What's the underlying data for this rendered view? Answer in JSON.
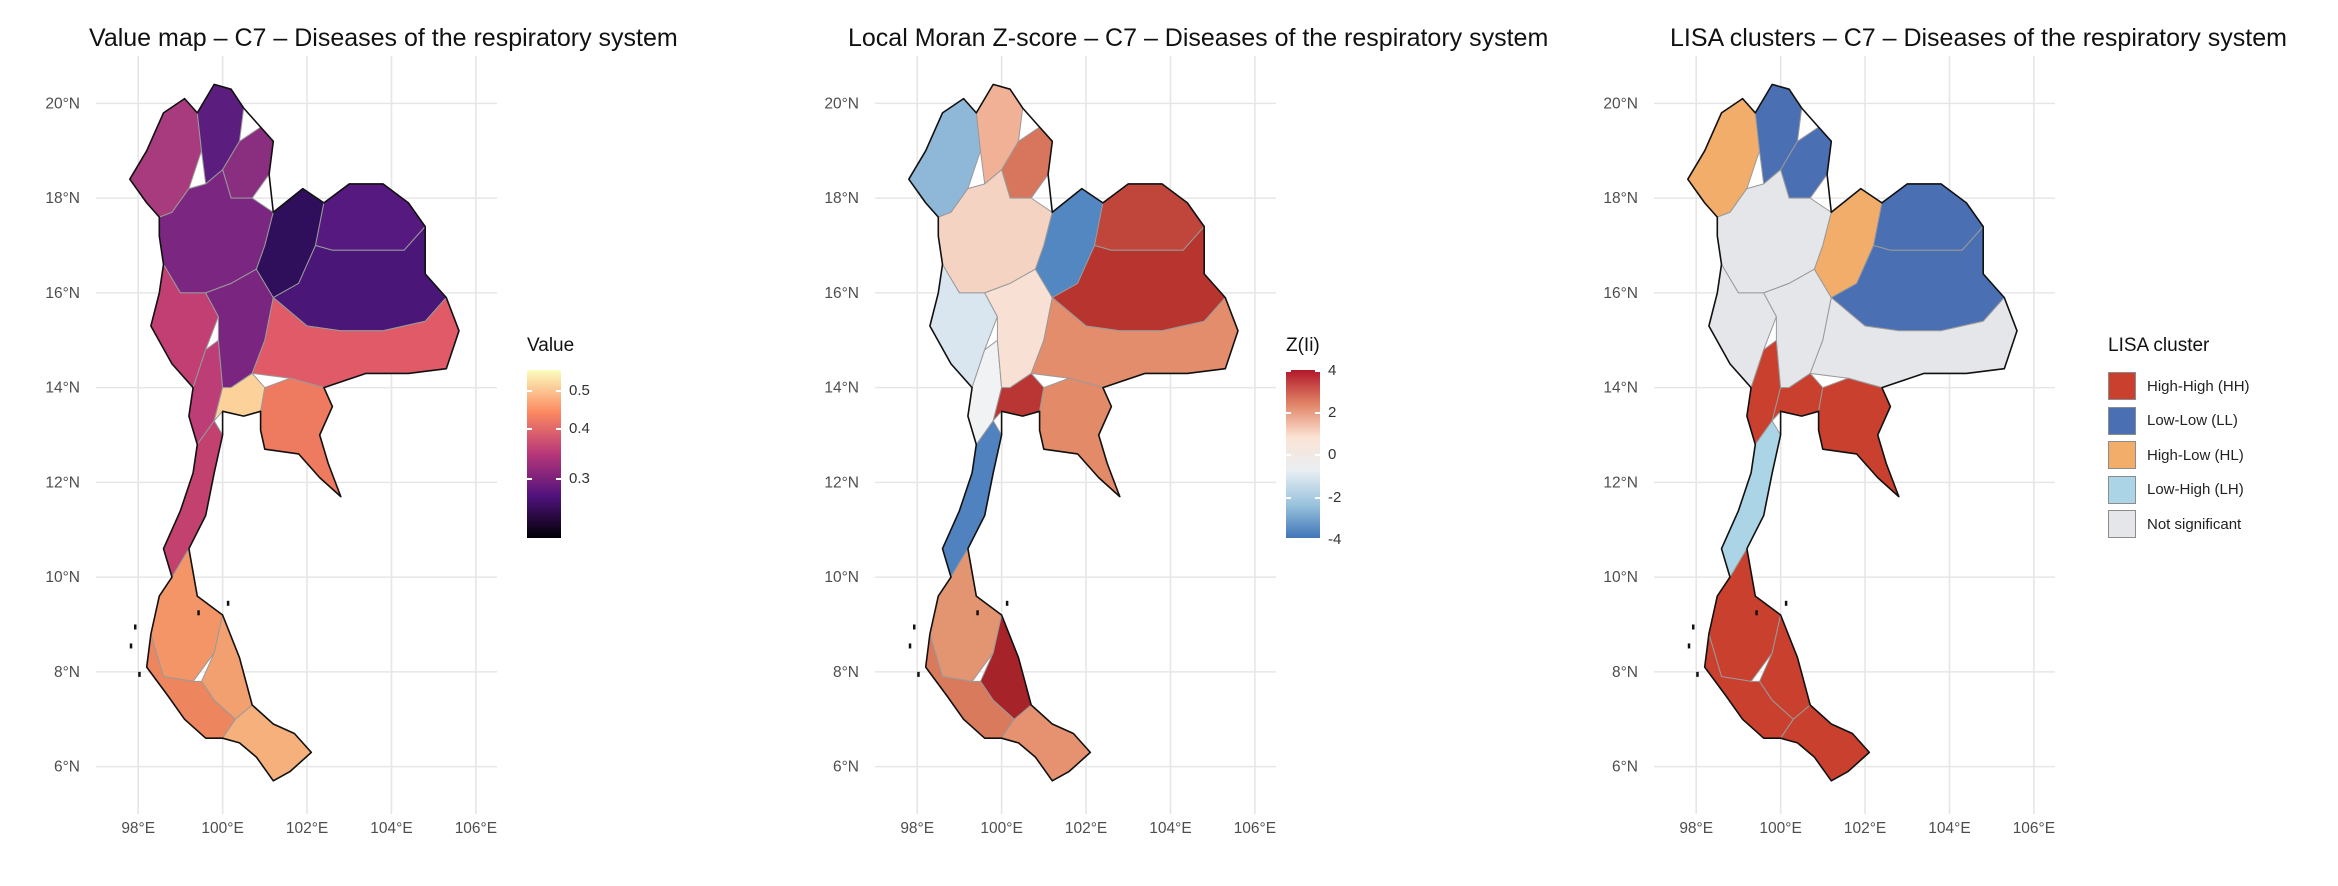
{
  "panels": [
    {
      "title": "Value map – C7 – Diseases of the respiratory system",
      "legend_title": "Value",
      "legend_type": "continuous",
      "legend_ticks": [
        "0.5",
        "0.4",
        "0.3"
      ],
      "gradient": [
        "#fcfdbf",
        "#fc8961",
        "#b73779",
        "#51127c",
        "#000004"
      ]
    },
    {
      "title": "Local Moran Z-score – C7 – Diseases of the respiratory system",
      "legend_title": "Z(Ii)",
      "legend_type": "continuous",
      "legend_ticks": [
        "4",
        "2",
        "0",
        "-2",
        "-4"
      ],
      "gradient": [
        "#b2182b",
        "#e08365",
        "#fbe3d4",
        "#e8eef3",
        "#9ac3dd",
        "#4175b7"
      ]
    },
    {
      "title": "LISA clusters – C7 – Diseases of the respiratory system",
      "legend_title": "LISA cluster",
      "legend_type": "categorical",
      "legend_items": [
        {
          "label": "High-High (HH)",
          "color": "#c9402f"
        },
        {
          "label": "Low-Low (LL)",
          "color": "#4b6fb3"
        },
        {
          "label": "High-Low (HL)",
          "color": "#f2ad6b"
        },
        {
          "label": "Low-High (LH)",
          "color": "#abd5e6"
        },
        {
          "label": "Not significant",
          "color": "#e5e6ea"
        }
      ]
    }
  ],
  "axes": {
    "x_labels": [
      "98°E",
      "100°E",
      "102°E",
      "104°E",
      "106°E"
    ],
    "y_labels": [
      "20°N",
      "18°N",
      "16°N",
      "14°N",
      "12°N",
      "10°N",
      "8°N",
      "6°N"
    ]
  }
}
